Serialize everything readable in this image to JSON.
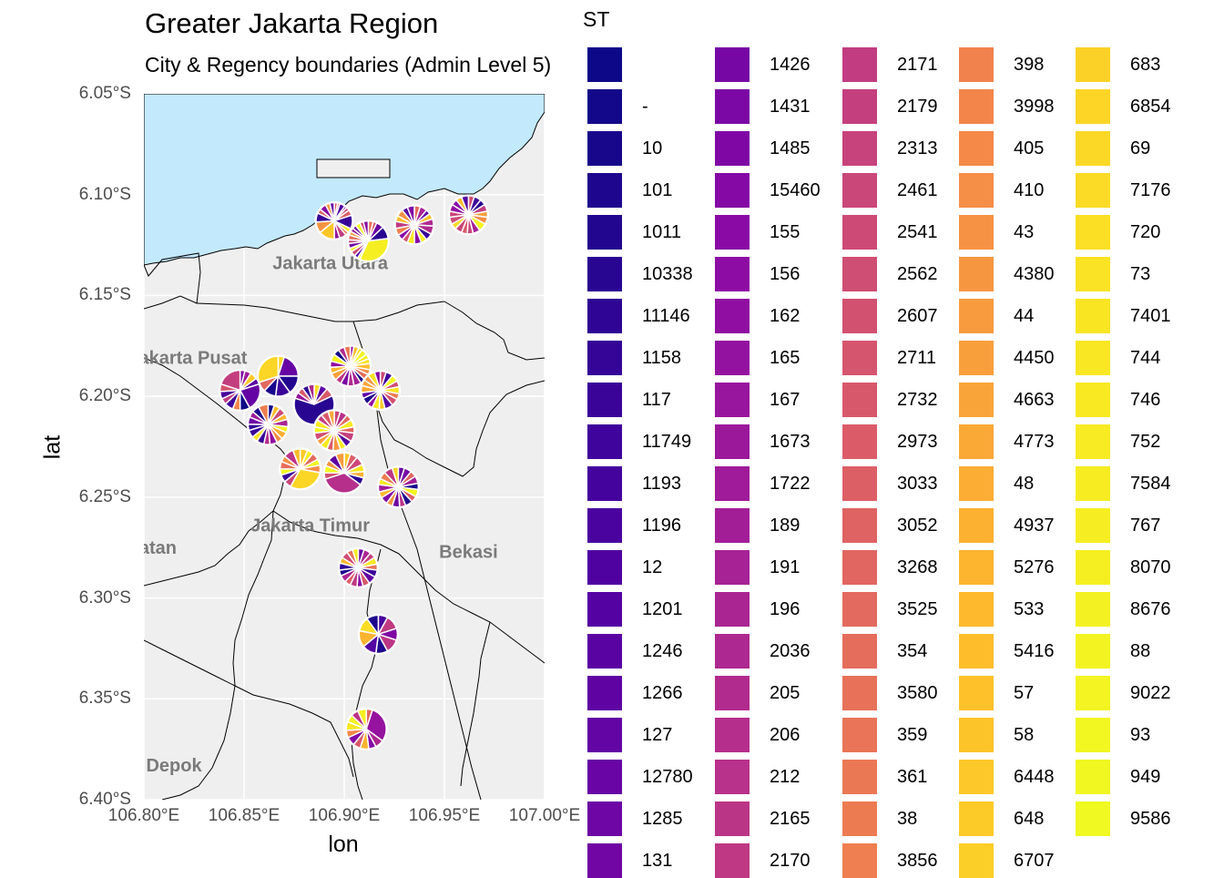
{
  "title": "Greater Jakarta Region",
  "subtitle": "City & Regency boundaries (Admin Level 5)",
  "axes": {
    "x_title": "lon",
    "y_title": "lat",
    "lat_ticks": [
      "6.05°S",
      "6.10°S",
      "6.15°S",
      "6.20°S",
      "6.25°S",
      "6.30°S",
      "6.35°S",
      "6.40°S"
    ],
    "lon_ticks": [
      "106.80°E",
      "106.85°E",
      "106.90°E",
      "106.95°E",
      "107.00°E"
    ]
  },
  "map": {
    "extent": {
      "lon": [
        106.8,
        107.0
      ],
      "lat": [
        -6.4,
        -6.05
      ]
    },
    "colors": {
      "sea": "#c3e9fc",
      "land": "#efefef",
      "grid": "#ffffff",
      "boundary": "#000000",
      "region_label": "#7a7a7a"
    },
    "region_labels": [
      "Jakarta Utara",
      "Jakarta Pusat",
      "Jakarta Timur",
      "Jakarta Selatan",
      "Bekasi",
      "Depok"
    ]
  },
  "legend": {
    "title": "ST",
    "palette": "plasma",
    "labels": [
      "",
      "-",
      "10",
      "101",
      "1011",
      "10338",
      "11146",
      "1158",
      "117",
      "11749",
      "1193",
      "1196",
      "12",
      "1201",
      "1246",
      "1266",
      "127",
      "12780",
      "1285",
      "131",
      "1426",
      "1431",
      "1485",
      "15460",
      "155",
      "156",
      "162",
      "165",
      "167",
      "1673",
      "1722",
      "189",
      "191",
      "196",
      "2036",
      "205",
      "206",
      "212",
      "2165",
      "2170",
      "2171",
      "2179",
      "2313",
      "2461",
      "2541",
      "2562",
      "2607",
      "2711",
      "2732",
      "2973",
      "3033",
      "3052",
      "3268",
      "3525",
      "354",
      "3580",
      "359",
      "361",
      "38",
      "3856",
      "398",
      "3998",
      "405",
      "410",
      "43",
      "4380",
      "44",
      "4450",
      "4663",
      "4773",
      "48",
      "4937",
      "5276",
      "533",
      "5416",
      "57",
      "58",
      "6448",
      "648",
      "6707",
      "683",
      "6854",
      "69",
      "7176",
      "720",
      "73",
      "7401",
      "744",
      "746",
      "752",
      "7584",
      "767",
      "8070",
      "8676",
      "88",
      "9022",
      "93",
      "949",
      "9586"
    ]
  },
  "chart_data": {
    "type": "map_with_pie_markers",
    "title": "Greater Jakarta Region",
    "subtitle": "City & Regency boundaries (Admin Level 5)",
    "xlabel": "lon",
    "ylabel": "lat",
    "xlim": [
      106.8,
      107.0
    ],
    "ylim": [
      -6.4,
      -6.05
    ],
    "pies": [
      {
        "lon": 106.895,
        "lat": -6.113,
        "slices": [
          0.03,
          0.02,
          0.05,
          0.02,
          0.03,
          0.05,
          0.12,
          0.04,
          0.03,
          0.06,
          0.05,
          0.14,
          0.1,
          0.08,
          0.04,
          0.06,
          0.04,
          0.04
        ]
      },
      {
        "lon": 106.912,
        "lat": -6.123,
        "slices": [
          0.04,
          0.03,
          0.06,
          0.1,
          0.34,
          0.02,
          0.03,
          0.04,
          0.03,
          0.04,
          0.03,
          0.04,
          0.03,
          0.03,
          0.03,
          0.04,
          0.03,
          0.04
        ]
      },
      {
        "lon": 106.935,
        "lat": -6.115,
        "slices": [
          0.05,
          0.06,
          0.04,
          0.05,
          0.06,
          0.07,
          0.06,
          0.05,
          0.06,
          0.06,
          0.05,
          0.05,
          0.06,
          0.06,
          0.05,
          0.06,
          0.05,
          0.06
        ]
      },
      {
        "lon": 106.962,
        "lat": -6.11,
        "slices": [
          0.05,
          0.06,
          0.05,
          0.06,
          0.05,
          0.06,
          0.07,
          0.06,
          0.05,
          0.05,
          0.06,
          0.05,
          0.06,
          0.05,
          0.06,
          0.05,
          0.05,
          0.06
        ]
      },
      {
        "lon": 106.903,
        "lat": -6.185,
        "slices": [
          0.03,
          0.04,
          0.03,
          0.05,
          0.04,
          0.04,
          0.05,
          0.04,
          0.05,
          0.04,
          0.06,
          0.05,
          0.06,
          0.05,
          0.06,
          0.05,
          0.05,
          0.06,
          0.05,
          0.05,
          0.05
        ]
      },
      {
        "lon": 106.918,
        "lat": -6.197,
        "slices": [
          0.05,
          0.06,
          0.06,
          0.05,
          0.06,
          0.05,
          0.06,
          0.07,
          0.05,
          0.06,
          0.05,
          0.06,
          0.05,
          0.06,
          0.05,
          0.05,
          0.06,
          0.05
        ]
      },
      {
        "lon": 106.867,
        "lat": -6.19,
        "slices": [
          0.05,
          0.2,
          0.15,
          0.12,
          0.1,
          0.08,
          0.3
        ]
      },
      {
        "lon": 106.885,
        "lat": -6.204,
        "slices": [
          0.05,
          0.06,
          0.07,
          0.62,
          0.05,
          0.05,
          0.05,
          0.05
        ]
      },
      {
        "lon": 106.848,
        "lat": -6.197,
        "slices": [
          0.04,
          0.05,
          0.06,
          0.05,
          0.22,
          0.08,
          0.06,
          0.07,
          0.05,
          0.06,
          0.06,
          0.2
        ]
      },
      {
        "lon": 106.862,
        "lat": -6.214,
        "slices": [
          0.05,
          0.05,
          0.06,
          0.05,
          0.06,
          0.05,
          0.06,
          0.05,
          0.06,
          0.05,
          0.06,
          0.05,
          0.06,
          0.05,
          0.06,
          0.05,
          0.06,
          0.08
        ]
      },
      {
        "lon": 106.895,
        "lat": -6.217,
        "slices": [
          0.05,
          0.06,
          0.05,
          0.06,
          0.05,
          0.07,
          0.06,
          0.05,
          0.06,
          0.05,
          0.06,
          0.05,
          0.06,
          0.05,
          0.06,
          0.05,
          0.06,
          0.05
        ]
      },
      {
        "lon": 106.878,
        "lat": -6.236,
        "slices": [
          0.06,
          0.05,
          0.06,
          0.05,
          0.06,
          0.3,
          0.06,
          0.06,
          0.05,
          0.06,
          0.05,
          0.08,
          0.06
        ]
      },
      {
        "lon": 106.9,
        "lat": -6.238,
        "slices": [
          0.05,
          0.06,
          0.07,
          0.06,
          0.05,
          0.06,
          0.35,
          0.05,
          0.06,
          0.05,
          0.07,
          0.07
        ]
      },
      {
        "lon": 106.927,
        "lat": -6.245,
        "slices": [
          0.05,
          0.06,
          0.05,
          0.06,
          0.05,
          0.06,
          0.05,
          0.06,
          0.05,
          0.06,
          0.05,
          0.06,
          0.05,
          0.06,
          0.05,
          0.06,
          0.07,
          0.05
        ]
      },
      {
        "lon": 106.907,
        "lat": -6.285,
        "slices": [
          0.05,
          0.06,
          0.05,
          0.06,
          0.05,
          0.06,
          0.07,
          0.06,
          0.05,
          0.06,
          0.05,
          0.06,
          0.05,
          0.06,
          0.05,
          0.06,
          0.05,
          0.05
        ]
      },
      {
        "lon": 106.917,
        "lat": -6.318,
        "slices": [
          0.08,
          0.12,
          0.1,
          0.12,
          0.1,
          0.12,
          0.14,
          0.12,
          0.1
        ]
      },
      {
        "lon": 106.911,
        "lat": -6.365,
        "slices": [
          0.05,
          0.3,
          0.07,
          0.06,
          0.07,
          0.06,
          0.07,
          0.06,
          0.07,
          0.06,
          0.06,
          0.07
        ]
      }
    ]
  }
}
